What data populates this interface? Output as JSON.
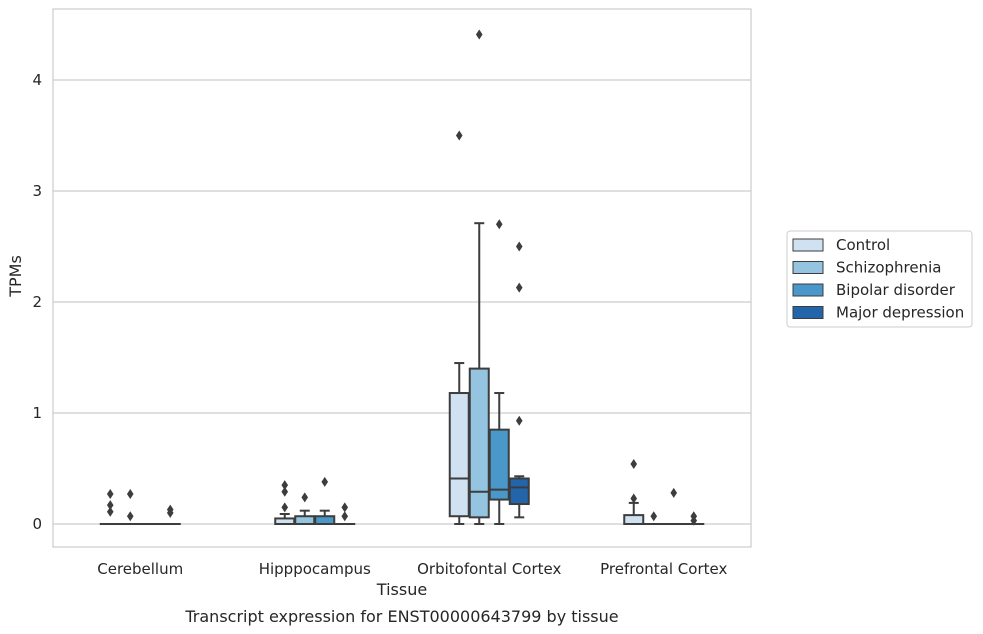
{
  "chart_data": {
    "type": "box",
    "xlabel": "Tissue",
    "ylabel": "TPMs",
    "caption": "Transcript expression for ENST00000643799 by tissue",
    "categories": [
      "Cerebellum",
      "Hipppocampus",
      "Orbitofontal Cortex",
      "Prefrontal Cortex"
    ],
    "ylim": [
      -0.21,
      4.64
    ],
    "yticks": [
      0,
      1,
      2,
      3,
      4
    ],
    "grid": "horizontal",
    "legend_position": "right",
    "series": [
      {
        "name": "Control",
        "color": "#d0e1f2",
        "boxes": [
          {
            "q1": 0,
            "median": 0,
            "q3": 0,
            "whisker_low": 0,
            "whisker_high": 0,
            "outliers": [
              0.27,
              0.17,
              0.11
            ]
          },
          {
            "q1": 0,
            "median": 0,
            "q3": 0.05,
            "whisker_low": 0,
            "whisker_high": 0.09,
            "outliers": [
              0.35,
              0.29,
              0.15
            ]
          },
          {
            "q1": 0.07,
            "median": 0.41,
            "q3": 1.18,
            "whisker_low": 0,
            "whisker_high": 1.45,
            "outliers": [
              3.5
            ]
          },
          {
            "q1": 0,
            "median": 0,
            "q3": 0.08,
            "whisker_low": 0,
            "whisker_high": 0.19,
            "outliers": [
              0.54,
              0.23
            ]
          }
        ]
      },
      {
        "name": "Schizophrenia",
        "color": "#94c4df",
        "boxes": [
          {
            "q1": 0,
            "median": 0,
            "q3": 0,
            "whisker_low": 0,
            "whisker_high": 0,
            "outliers": [
              0.27,
              0.07
            ]
          },
          {
            "q1": 0,
            "median": 0,
            "q3": 0.07,
            "whisker_low": 0,
            "whisker_high": 0.12,
            "outliers": [
              0.24
            ]
          },
          {
            "q1": 0.06,
            "median": 0.29,
            "q3": 1.4,
            "whisker_low": 0,
            "whisker_high": 2.71,
            "outliers": [
              4.41
            ]
          },
          {
            "q1": 0,
            "median": 0,
            "q3": 0,
            "whisker_low": 0,
            "whisker_high": 0,
            "outliers": [
              0.07
            ]
          }
        ]
      },
      {
        "name": "Bipolar disorder",
        "color": "#4a98c9",
        "boxes": [
          {
            "q1": 0,
            "median": 0,
            "q3": 0,
            "whisker_low": 0,
            "whisker_high": 0,
            "outliers": []
          },
          {
            "q1": 0,
            "median": 0,
            "q3": 0.07,
            "whisker_low": 0,
            "whisker_high": 0.12,
            "outliers": [
              0.38
            ]
          },
          {
            "q1": 0.22,
            "median": 0.31,
            "q3": 0.85,
            "whisker_low": 0,
            "whisker_high": 1.18,
            "outliers": [
              2.7
            ]
          },
          {
            "q1": 0,
            "median": 0,
            "q3": 0,
            "whisker_low": 0,
            "whisker_high": 0,
            "outliers": [
              0.28
            ]
          }
        ]
      },
      {
        "name": "Major depression",
        "color": "#2365aa",
        "boxes": [
          {
            "q1": 0,
            "median": 0,
            "q3": 0,
            "whisker_low": 0,
            "whisker_high": 0,
            "outliers": [
              0.13,
              0.1
            ]
          },
          {
            "q1": 0,
            "median": 0,
            "q3": 0,
            "whisker_low": 0,
            "whisker_high": 0,
            "outliers": [
              0.15,
              0.07
            ]
          },
          {
            "q1": 0.18,
            "median": 0.33,
            "q3": 0.41,
            "whisker_low": 0.06,
            "whisker_high": 0.43,
            "outliers": [
              2.5,
              2.13,
              0.93
            ]
          },
          {
            "q1": 0,
            "median": 0,
            "q3": 0,
            "whisker_low": 0,
            "whisker_high": 0,
            "outliers": [
              0.07,
              0.03
            ]
          }
        ]
      }
    ]
  }
}
